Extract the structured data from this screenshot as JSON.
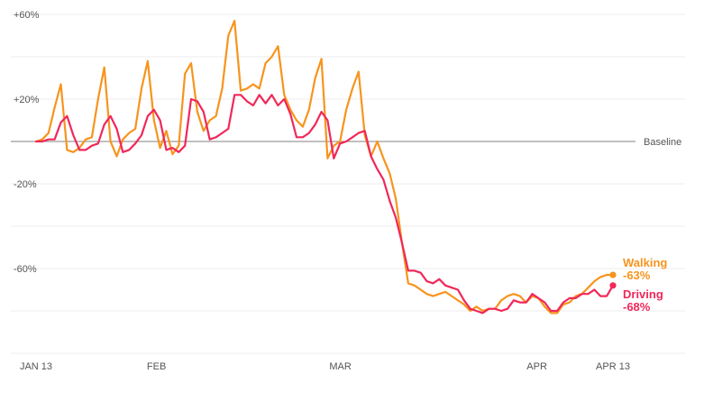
{
  "chart_data": {
    "type": "line",
    "title": "",
    "xlabel": "",
    "ylabel": "",
    "x_start": "2020-01-13",
    "x_end": "2020-04-13",
    "ylim": [
      -100,
      60
    ],
    "yticks": [
      {
        "value": 60,
        "label": "+60%"
      },
      {
        "value": 20,
        "label": "+20%"
      },
      {
        "value": -20,
        "label": "-20%"
      },
      {
        "value": -60,
        "label": "-60%"
      }
    ],
    "xticks": [
      {
        "date": "2020-01-13",
        "label": "JAN 13"
      },
      {
        "date": "2020-02-01",
        "label": "FEB"
      },
      {
        "date": "2020-03-01",
        "label": "MAR"
      },
      {
        "date": "2020-04-01",
        "label": "APR"
      },
      {
        "date": "2020-04-13",
        "label": "APR 13"
      }
    ],
    "baseline": {
      "value": 0,
      "label": "Baseline"
    },
    "grid": true,
    "series": [
      {
        "name": "Walking",
        "color": "#f7941d",
        "end_label": "Walking",
        "end_value_label": "-63%",
        "values": [
          0,
          1,
          4,
          16,
          27,
          -4,
          -5,
          -3,
          1,
          2,
          20,
          35,
          0,
          -7,
          1,
          4,
          6,
          25,
          38,
          10,
          -3,
          5,
          -6,
          -2,
          32,
          37,
          14,
          5,
          10,
          12,
          25,
          50,
          57,
          24,
          25,
          27,
          25,
          37,
          40,
          45,
          22,
          15,
          10,
          7,
          15,
          30,
          39,
          -8,
          -2,
          0,
          15,
          25,
          33,
          3,
          -7,
          0,
          -8,
          -15,
          -27,
          -48,
          -67,
          -68,
          -70,
          -72,
          -73,
          -72,
          -71,
          -73,
          -75,
          -77,
          -80,
          -78,
          -80,
          -79,
          -79,
          -75,
          -73,
          -72,
          -73,
          -76,
          -73,
          -74,
          -78,
          -81,
          -81,
          -77,
          -76,
          -73,
          -72,
          -69,
          -66,
          -64,
          -63,
          -63
        ]
      },
      {
        "name": "Driving",
        "color": "#f0285a",
        "end_label": "Driving",
        "end_value_label": "-68%",
        "values": [
          0,
          0,
          1,
          1,
          9,
          12,
          3,
          -4,
          -4,
          -2,
          -1,
          8,
          12,
          6,
          -5,
          -4,
          -1,
          3,
          12,
          15,
          10,
          -4,
          -3,
          -5,
          -2,
          20,
          19,
          14,
          1,
          2,
          4,
          6,
          22,
          22,
          19,
          17,
          22,
          18,
          22,
          17,
          20,
          13,
          2,
          2,
          4,
          8,
          14,
          10,
          -8,
          -1,
          0,
          2,
          4,
          5,
          -7,
          -13,
          -18,
          -28,
          -36,
          -48,
          -61,
          -61,
          -62,
          -66,
          -67,
          -65,
          -68,
          -69,
          -70,
          -75,
          -79,
          -80,
          -81,
          -79,
          -79,
          -80,
          -79,
          -75,
          -76,
          -76,
          -72,
          -74,
          -76,
          -80,
          -80,
          -76,
          -74,
          -74,
          -72,
          -72,
          -70,
          -73,
          -73,
          -68
        ]
      }
    ]
  }
}
